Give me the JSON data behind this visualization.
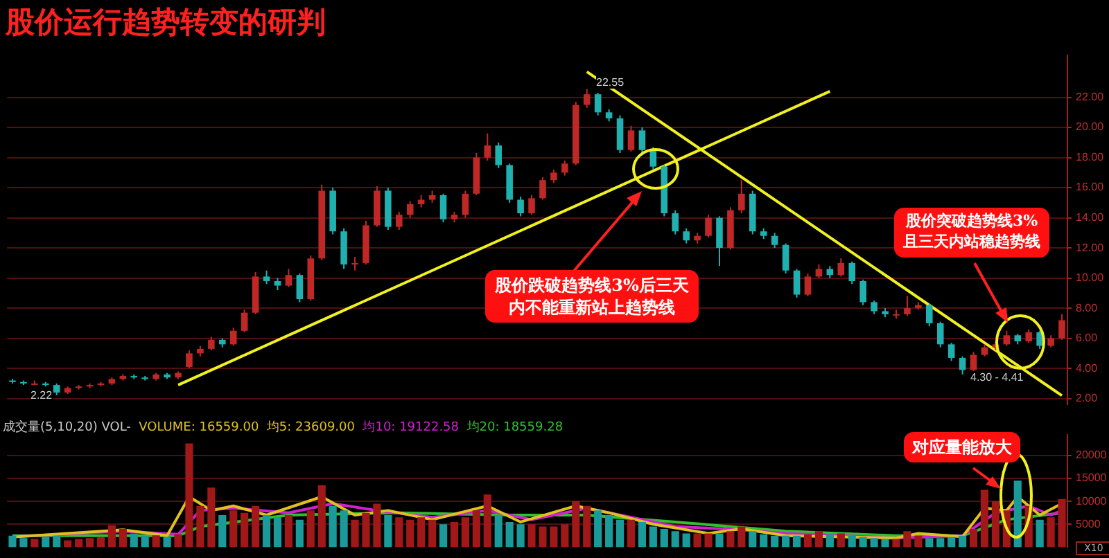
{
  "chart_data": [
    {
      "type": "candlestick",
      "title": "股价运行趋势转变的研判",
      "categories": [
        null,
        null,
        null,
        null,
        null,
        null,
        null,
        null,
        null,
        null,
        null,
        null,
        null,
        null,
        null,
        null,
        null,
        null,
        null,
        null,
        null,
        null,
        null,
        null,
        null,
        null,
        null,
        null,
        null,
        null,
        null,
        null,
        null,
        null,
        null,
        null,
        null,
        null,
        null,
        null,
        null,
        null,
        null,
        null,
        null,
        null,
        null,
        null,
        null,
        null,
        null,
        null,
        null,
        null,
        null,
        null,
        null,
        null,
        null,
        null,
        null,
        null,
        null,
        null,
        null,
        null,
        null,
        null,
        null,
        null,
        null,
        null,
        null,
        null,
        null,
        null,
        null,
        null,
        null,
        null,
        null,
        null,
        null,
        null,
        null,
        null,
        null,
        null,
        null,
        null,
        null,
        null,
        null,
        null,
        null,
        null
      ],
      "ohlc": [
        [
          3.2,
          3.3,
          3.0,
          3.1
        ],
        [
          3.1,
          3.2,
          2.9,
          3.0
        ],
        [
          3.0,
          3.2,
          2.9,
          3.0
        ],
        [
          3.0,
          3.1,
          2.8,
          2.9
        ],
        [
          2.9,
          3.0,
          2.22,
          2.4
        ],
        [
          2.4,
          2.8,
          2.3,
          2.7
        ],
        [
          2.7,
          2.9,
          2.6,
          2.8
        ],
        [
          2.8,
          3.0,
          2.7,
          2.9
        ],
        [
          2.9,
          3.1,
          2.8,
          3.0
        ],
        [
          3.0,
          3.4,
          2.9,
          3.3
        ],
        [
          3.3,
          3.6,
          3.2,
          3.5
        ],
        [
          3.5,
          3.6,
          3.3,
          3.4
        ],
        [
          3.4,
          3.5,
          3.2,
          3.3
        ],
        [
          3.3,
          3.7,
          3.2,
          3.6
        ],
        [
          3.6,
          3.7,
          3.3,
          3.4
        ],
        [
          3.4,
          3.8,
          3.3,
          3.7
        ],
        [
          4.1,
          5.2,
          4.0,
          5.0
        ],
        [
          5.0,
          5.5,
          4.8,
          5.3
        ],
        [
          5.3,
          6.1,
          5.2,
          5.9
        ],
        [
          5.9,
          6.0,
          5.4,
          5.6
        ],
        [
          5.6,
          6.7,
          5.5,
          6.5
        ],
        [
          6.5,
          7.9,
          6.4,
          7.7
        ],
        [
          7.7,
          10.4,
          7.6,
          10.1
        ],
        [
          10.1,
          10.5,
          9.6,
          9.8
        ],
        [
          9.8,
          10.0,
          9.2,
          9.5
        ],
        [
          9.5,
          10.6,
          9.4,
          10.2
        ],
        [
          10.2,
          10.3,
          8.4,
          8.6
        ],
        [
          8.6,
          11.5,
          8.5,
          11.3
        ],
        [
          11.3,
          16.2,
          11.2,
          15.8
        ],
        [
          15.8,
          16.0,
          12.9,
          13.1
        ],
        [
          13.1,
          13.3,
          10.6,
          10.9
        ],
        [
          10.9,
          11.4,
          10.5,
          11.0
        ],
        [
          11.0,
          13.8,
          10.9,
          13.5
        ],
        [
          13.5,
          16.1,
          13.4,
          15.8
        ],
        [
          15.8,
          16.0,
          13.2,
          13.4
        ],
        [
          13.4,
          14.4,
          13.2,
          14.2
        ],
        [
          14.2,
          15.1,
          14.0,
          14.9
        ],
        [
          14.9,
          15.5,
          14.7,
          15.2
        ],
        [
          15.2,
          15.8,
          15.0,
          15.5
        ],
        [
          15.5,
          15.6,
          13.7,
          13.9
        ],
        [
          13.9,
          14.4,
          13.7,
          14.2
        ],
        [
          14.2,
          15.8,
          14.0,
          15.6
        ],
        [
          15.6,
          18.3,
          15.5,
          18.0
        ],
        [
          18.0,
          19.6,
          17.8,
          18.8
        ],
        [
          18.8,
          19.0,
          17.3,
          17.5
        ],
        [
          17.5,
          17.6,
          15.0,
          15.2
        ],
        [
          15.2,
          15.4,
          14.1,
          14.3
        ],
        [
          14.3,
          15.5,
          14.2,
          15.3
        ],
        [
          15.3,
          16.7,
          15.2,
          16.5
        ],
        [
          16.5,
          17.2,
          16.3,
          17.0
        ],
        [
          17.0,
          17.8,
          16.8,
          17.6
        ],
        [
          17.6,
          21.7,
          17.5,
          21.5
        ],
        [
          21.5,
          22.55,
          21.3,
          22.2
        ],
        [
          22.2,
          22.3,
          20.8,
          21.0
        ],
        [
          21.0,
          21.2,
          20.4,
          20.6
        ],
        [
          20.6,
          20.8,
          18.3,
          18.5
        ],
        [
          18.5,
          20.1,
          18.4,
          19.8
        ],
        [
          19.8,
          20.0,
          18.3,
          18.5
        ],
        [
          18.5,
          18.7,
          17.2,
          17.4
        ],
        [
          17.4,
          17.5,
          14.1,
          14.3
        ],
        [
          14.3,
          14.5,
          12.9,
          13.1
        ],
        [
          13.1,
          13.3,
          12.3,
          12.5
        ],
        [
          12.5,
          13.0,
          12.3,
          12.8
        ],
        [
          12.8,
          14.2,
          12.7,
          14.0
        ],
        [
          14.0,
          14.1,
          10.8,
          12.0
        ],
        [
          12.0,
          14.7,
          11.9,
          14.5
        ],
        [
          14.5,
          16.5,
          14.3,
          15.6
        ],
        [
          15.6,
          15.8,
          12.9,
          13.1
        ],
        [
          13.1,
          13.3,
          12.6,
          12.8
        ],
        [
          12.8,
          13.0,
          12.0,
          12.2
        ],
        [
          12.2,
          12.3,
          10.3,
          10.5
        ],
        [
          10.5,
          10.6,
          8.7,
          8.9
        ],
        [
          8.9,
          10.3,
          8.8,
          10.1
        ],
        [
          10.1,
          10.9,
          10.0,
          10.6
        ],
        [
          10.6,
          10.8,
          10.0,
          10.2
        ],
        [
          10.2,
          11.3,
          10.1,
          11.0
        ],
        [
          11.0,
          11.1,
          9.6,
          9.8
        ],
        [
          9.8,
          9.9,
          8.2,
          8.4
        ],
        [
          8.4,
          8.5,
          7.6,
          7.8
        ],
        [
          7.8,
          8.0,
          7.4,
          7.6
        ],
        [
          7.6,
          7.9,
          7.3,
          7.6
        ],
        [
          7.6,
          8.8,
          7.5,
          8.0
        ],
        [
          8.0,
          8.4,
          7.9,
          8.2
        ],
        [
          8.2,
          8.3,
          6.8,
          7.0
        ],
        [
          7.0,
          7.1,
          5.4,
          5.6
        ],
        [
          5.6,
          5.7,
          4.5,
          4.7
        ],
        [
          4.7,
          4.8,
          3.6,
          3.9
        ],
        [
          3.9,
          5.1,
          3.8,
          4.9
        ],
        [
          4.9,
          5.6,
          4.8,
          5.4
        ],
        [
          5.4,
          5.8,
          5.2,
          5.6
        ],
        [
          5.6,
          6.5,
          5.5,
          6.2
        ],
        [
          6.2,
          6.3,
          5.6,
          5.8
        ],
        [
          5.8,
          6.6,
          5.7,
          6.4
        ],
        [
          6.4,
          6.5,
          5.3,
          5.5
        ],
        [
          5.5,
          6.2,
          5.4,
          6.0
        ],
        [
          6.0,
          7.6,
          5.9,
          7.2
        ]
      ],
      "ylim": [
        1.6,
        24.8
      ],
      "yticks": [
        {
          "value": 2,
          "label": "2.00"
        },
        {
          "value": 4,
          "label": "4.00"
        },
        {
          "value": 6,
          "label": "6.00"
        },
        {
          "value": 8,
          "label": "8.00"
        },
        {
          "value": 10,
          "label": "10.00"
        },
        {
          "value": 12,
          "label": "12.00"
        },
        {
          "value": 14,
          "label": "14.00"
        },
        {
          "value": 16,
          "label": "16.00"
        },
        {
          "value": 18,
          "label": "18.00"
        },
        {
          "value": 20,
          "label": "20.00"
        },
        {
          "value": 22,
          "label": "22.00"
        }
      ],
      "tick_labels": "y",
      "grid": "y",
      "series": [
        {
          "type": "line",
          "color": "#f0f020",
          "values": [
            null,
            null,
            null,
            null,
            null,
            null,
            null,
            null,
            null,
            null,
            null,
            null,
            null,
            null,
            null,
            2.9,
            null,
            null,
            null,
            null,
            null,
            null,
            null,
            null,
            null,
            null,
            null,
            null,
            null,
            null,
            null,
            null,
            null,
            null,
            null,
            null,
            null,
            null,
            null,
            null,
            null,
            null,
            null,
            null,
            null,
            null,
            null,
            null,
            null,
            null,
            null,
            null,
            null,
            null,
            null,
            null,
            null,
            null,
            null,
            null,
            null,
            null,
            null,
            null,
            null,
            null,
            null,
            null,
            null,
            null,
            null,
            null,
            null,
            null,
            22.4,
            null,
            null,
            null,
            null,
            null,
            null,
            null,
            null,
            null,
            null,
            null,
            null,
            null,
            null,
            null,
            null,
            null,
            null,
            null,
            null,
            null
          ]
        },
        {
          "type": "line",
          "color": "#f0f020",
          "values": [
            null,
            null,
            null,
            null,
            null,
            null,
            null,
            null,
            null,
            null,
            null,
            null,
            null,
            null,
            null,
            null,
            null,
            null,
            null,
            null,
            null,
            null,
            null,
            null,
            null,
            null,
            null,
            null,
            null,
            null,
            null,
            null,
            null,
            null,
            null,
            null,
            null,
            null,
            null,
            null,
            null,
            null,
            null,
            null,
            null,
            null,
            null,
            null,
            null,
            null,
            null,
            null,
            23.7,
            null,
            null,
            null,
            null,
            null,
            null,
            null,
            null,
            null,
            null,
            null,
            null,
            null,
            null,
            null,
            null,
            null,
            null,
            null,
            null,
            null,
            null,
            null,
            null,
            null,
            null,
            null,
            null,
            null,
            null,
            null,
            null,
            null,
            null,
            null,
            null,
            null,
            null,
            null,
            null,
            null,
            null,
            2.2
          ]
        }
      ],
      "annotations": [
        "2.22",
        "22.55",
        "股价跌破趋势线3%后三天内不能重新站上趋势线",
        "股价突破趋势线3%且三天内站稳趋势线",
        "4.30 - 4.41"
      ]
    },
    {
      "type": "bar",
      "title": "成交量(5,10,20) VOL-",
      "subtitle": "VOLUME: 16559.00",
      "categories": [
        null,
        null,
        null,
        null,
        null,
        null,
        null,
        null,
        null,
        null,
        null,
        null,
        null,
        null,
        null,
        null,
        null,
        null,
        null,
        null,
        null,
        null,
        null,
        null,
        null,
        null,
        null,
        null,
        null,
        null,
        null,
        null,
        null,
        null,
        null,
        null,
        null,
        null,
        null,
        null,
        null,
        null,
        null,
        null,
        null,
        null,
        null,
        null,
        null,
        null,
        null,
        null,
        null,
        null,
        null,
        null,
        null,
        null,
        null,
        null,
        null,
        null,
        null,
        null,
        null,
        null,
        null,
        null,
        null,
        null,
        null,
        null,
        null,
        null,
        null,
        null,
        null,
        null,
        null,
        null,
        null,
        null,
        null,
        null,
        null,
        null,
        null,
        null,
        null,
        null,
        null,
        null,
        null,
        null,
        null,
        null
      ],
      "ylim": [
        0,
        24500
      ],
      "yticks": [
        5000,
        10000,
        15000,
        20000
      ],
      "tick_labels": "y",
      "grid": "y",
      "series": [
        {
          "type": "bar",
          "values": [
            2500,
            2000,
            1800,
            2200,
            2500,
            1500,
            1800,
            2000,
            2200,
            4800,
            4000,
            3000,
            2500,
            2600,
            2200,
            2800,
            22600,
            9000,
            13000,
            7000,
            8000,
            7500,
            9000,
            7000,
            6500,
            7000,
            6000,
            8000,
            13500,
            9000,
            8000,
            6000,
            7500,
            9500,
            7000,
            6500,
            6000,
            6500,
            6000,
            5000,
            5500,
            6500,
            8000,
            11500,
            7000,
            5500,
            5000,
            5000,
            4500,
            4500,
            5000,
            10000,
            9000,
            8000,
            7000,
            6000,
            6000,
            5500,
            4500,
            4000,
            3500,
            3000,
            3000,
            3000,
            3000,
            3500,
            4500,
            3500,
            2800,
            2500,
            2500,
            2500,
            2800,
            3500,
            2800,
            3000,
            2500,
            2200,
            2000,
            1800,
            1800,
            3500,
            2500,
            2000,
            2000,
            2200,
            2500,
            4000,
            12500,
            10000,
            8000,
            14500,
            9000,
            6000,
            6500,
            10500
          ],
          "colors": [
            "#1a9a9a",
            "#1a9a9a",
            "#a01818",
            "#1a9a9a",
            "#1a9a9a",
            "#a01818",
            "#a01818",
            "#a01818",
            "#a01818",
            "#a01818",
            "#a01818",
            "#1a9a9a",
            "#1a9a9a",
            "#a01818",
            "#1a9a9a",
            "#a01818",
            "#a01818",
            "#a01818",
            "#a01818",
            "#1a9a9a",
            "#a01818",
            "#a01818",
            "#a01818",
            "#1a9a9a",
            "#1a9a9a",
            "#a01818",
            "#1a9a9a",
            "#a01818",
            "#a01818",
            "#1a9a9a",
            "#1a9a9a",
            "#a01818",
            "#a01818",
            "#a01818",
            "#1a9a9a",
            "#a01818",
            "#a01818",
            "#a01818",
            "#a01818",
            "#1a9a9a",
            "#a01818",
            "#a01818",
            "#a01818",
            "#a01818",
            "#1a9a9a",
            "#1a9a9a",
            "#1a9a9a",
            "#a01818",
            "#a01818",
            "#a01818",
            "#a01818",
            "#a01818",
            "#a01818",
            "#1a9a9a",
            "#1a9a9a",
            "#1a9a9a",
            "#a01818",
            "#1a9a9a",
            "#1a9a9a",
            "#1a9a9a",
            "#1a9a9a",
            "#1a9a9a",
            "#a01818",
            "#a01818",
            "#1a9a9a",
            "#a01818",
            "#a01818",
            "#1a9a9a",
            "#1a9a9a",
            "#1a9a9a",
            "#1a9a9a",
            "#1a9a9a",
            "#a01818",
            "#a01818",
            "#1a9a9a",
            "#a01818",
            "#1a9a9a",
            "#1a9a9a",
            "#1a9a9a",
            "#1a9a9a",
            "#a01818",
            "#a01818",
            "#a01818",
            "#1a9a9a",
            "#1a9a9a",
            "#1a9a9a",
            "#1a9a9a",
            "#a01818",
            "#a01818",
            "#a01818",
            "#a01818",
            "#1a9a9a",
            "#a01818",
            "#1a9a9a",
            "#a01818",
            "#a01818"
          ]
        },
        {
          "type": "line",
          "name": "均5: 23609.00",
          "color": "#e0c020",
          "values": [
            2200,
            null,
            null,
            null,
            null,
            null,
            null,
            null,
            null,
            null,
            3800,
            null,
            null,
            null,
            2500,
            null,
            11000,
            null,
            8000,
            null,
            9000,
            null,
            null,
            7000,
            null,
            null,
            null,
            null,
            11000,
            null,
            null,
            7000,
            null,
            null,
            8000,
            null,
            null,
            null,
            6000,
            null,
            null,
            null,
            null,
            9000,
            null,
            null,
            5500,
            null,
            null,
            null,
            null,
            9000,
            null,
            null,
            7500,
            null,
            null,
            null,
            5000,
            null,
            null,
            null,
            null,
            3000,
            null,
            null,
            4000,
            null,
            null,
            null,
            2500,
            null,
            null,
            null,
            null,
            null,
            null,
            null,
            null,
            null,
            2000,
            null,
            3000,
            null,
            null,
            null,
            2300,
            null,
            8500,
            null,
            8000,
            11000,
            null,
            7000,
            null,
            9500
          ]
        },
        {
          "type": "line",
          "name": "均10: 19122.58",
          "color": "#d020d0",
          "values": [
            2300,
            null,
            null,
            null,
            null,
            null,
            null,
            null,
            null,
            null,
            3500,
            null,
            null,
            null,
            null,
            2800,
            null,
            8000,
            null,
            null,
            8500,
            null,
            null,
            null,
            null,
            7500,
            null,
            null,
            null,
            9500,
            null,
            null,
            null,
            8000,
            null,
            null,
            null,
            null,
            6500,
            null,
            null,
            null,
            null,
            8000,
            null,
            null,
            null,
            6000,
            null,
            null,
            null,
            null,
            8500,
            null,
            null,
            null,
            6500,
            null,
            null,
            null,
            4500,
            null,
            null,
            null,
            null,
            null,
            3800,
            null,
            null,
            null,
            3000,
            null,
            null,
            null,
            null,
            null,
            null,
            null,
            null,
            null,
            2000,
            null,
            null,
            null,
            null,
            null,
            2500,
            null,
            null,
            7500,
            null,
            null,
            9000,
            null,
            7000,
            8000
          ]
        },
        {
          "type": "line",
          "name": "均20: 18559.28",
          "color": "#30c030",
          "values": [
            2500,
            null,
            null,
            null,
            null,
            null,
            null,
            null,
            null,
            null,
            null,
            null,
            null,
            null,
            null,
            2500,
            null,
            4500,
            null,
            null,
            null,
            null,
            null,
            null,
            null,
            7000,
            null,
            null,
            null,
            null,
            null,
            null,
            null,
            null,
            null,
            7500,
            null,
            null,
            null,
            null,
            null,
            null,
            null,
            null,
            null,
            7000,
            null,
            null,
            null,
            null,
            null,
            null,
            7000,
            null,
            null,
            null,
            null,
            null,
            null,
            null,
            5500,
            null,
            null,
            null,
            null,
            null,
            null,
            null,
            null,
            null,
            3500,
            null,
            null,
            null,
            null,
            null,
            null,
            null,
            null,
            null,
            2500,
            null,
            null,
            null,
            null,
            null,
            2500,
            null,
            null,
            null,
            6000,
            null,
            null,
            null,
            null,
            7500
          ]
        }
      ],
      "annotations": [
        "对应量能放大",
        "X10"
      ]
    }
  ]
}
